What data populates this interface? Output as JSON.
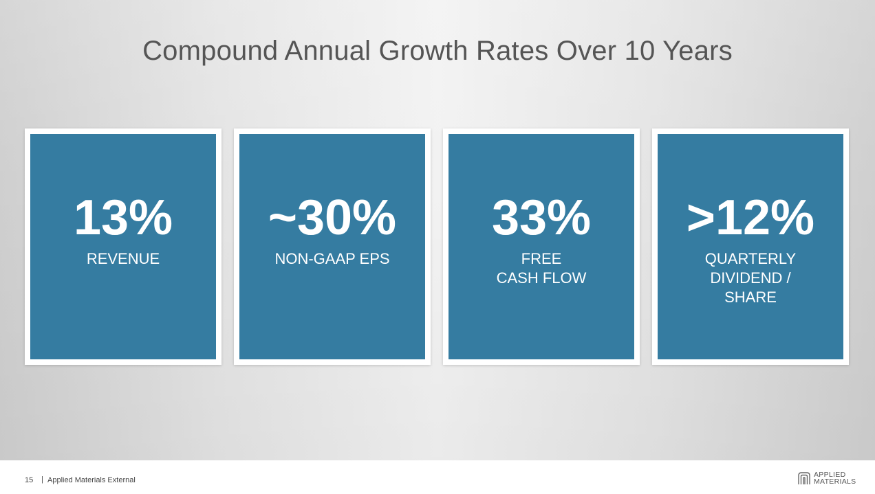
{
  "slide": {
    "title": "Compound Annual Growth Rates Over 10 Years",
    "cards": [
      {
        "metric": "13%",
        "label_lines": [
          "REVENUE"
        ]
      },
      {
        "metric": "~30%",
        "label_lines": [
          "NON-GAAP EPS"
        ]
      },
      {
        "metric": "33%",
        "label_lines": [
          "FREE",
          "CASH FLOW"
        ]
      },
      {
        "metric": ">12%",
        "label_lines": [
          "QUARTERLY",
          "DIVIDEND /",
          "SHARE"
        ]
      }
    ]
  },
  "footer": {
    "page_number": "15",
    "separator": "|",
    "text": "Applied Materials External",
    "logo_line1": "APPLIED",
    "logo_line2": "MATERIALS"
  },
  "colors": {
    "card_fill": "#357ca1",
    "card_border": "#ffffff",
    "title_text": "#555555"
  }
}
